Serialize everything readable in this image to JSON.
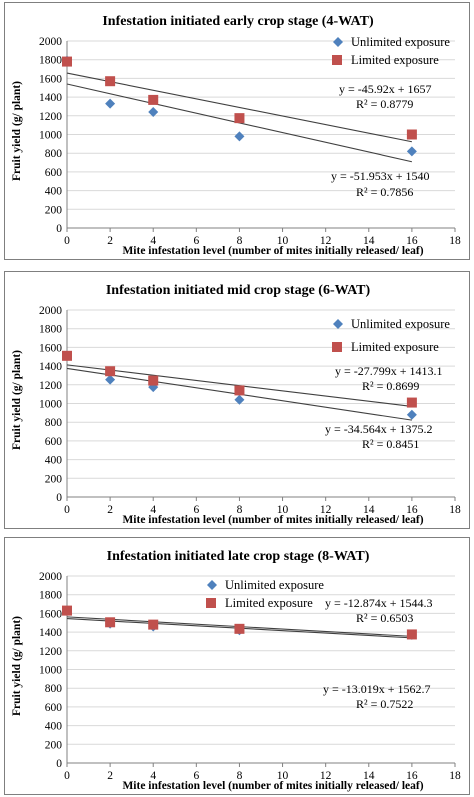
{
  "colors": {
    "unlimited": "#4f81bd",
    "limited": "#c0504d",
    "trendline": "#404040",
    "axis": "#808080"
  },
  "chart_data": [
    {
      "type": "scatter",
      "title": "Infestation initiated early crop stage (4-WAT)",
      "xlabel": "Mite infestation level (number of mites initially released/ leaf)",
      "ylabel": "Fruit yield (g/ plant)",
      "xlim": [
        0,
        18
      ],
      "ylim": [
        0,
        2000
      ],
      "xticks": [
        "0",
        "2",
        "4",
        "6",
        "8",
        "10",
        "12",
        "14",
        "16",
        "18"
      ],
      "yticks": [
        "0",
        "200",
        "400",
        "600",
        "800",
        "1000",
        "1200",
        "1400",
        "1600",
        "1800",
        "2000"
      ],
      "legend_position": "top-right",
      "series": [
        {
          "name": "Unlimited exposure",
          "marker": "diamond",
          "x": [
            0,
            2,
            4,
            8,
            16
          ],
          "y": [
            1790,
            1330,
            1240,
            980,
            820
          ],
          "trendline": {
            "slope": -51.953,
            "intercept": 1540,
            "equation": "y = -51.953x + 1540",
            "r2": "R² = 0.7856"
          }
        },
        {
          "name": "Limited exposure",
          "marker": "square",
          "x": [
            0,
            2,
            4,
            8,
            16
          ],
          "y": [
            1780,
            1570,
            1370,
            1175,
            1000
          ],
          "trendline": {
            "slope": -45.92,
            "intercept": 1657,
            "equation": "y = -45.92x + 1657",
            "r2": "R² = 0.8779"
          }
        }
      ]
    },
    {
      "type": "scatter",
      "title": "Infestation initiated mid crop stage (6-WAT)",
      "xlabel": "Mite infestation level (number of mites initially released/ leaf)",
      "ylabel": "Fruit yield (g/ plant)",
      "xlim": [
        0,
        18
      ],
      "ylim": [
        0,
        2000
      ],
      "xticks": [
        "0",
        "2",
        "4",
        "6",
        "8",
        "10",
        "12",
        "14",
        "16",
        "18"
      ],
      "yticks": [
        "0",
        "200",
        "400",
        "600",
        "800",
        "1000",
        "1200",
        "1400",
        "1600",
        "1800",
        "2000"
      ],
      "legend_position": "top-right",
      "series": [
        {
          "name": "Unlimited exposure",
          "marker": "diamond",
          "x": [
            0,
            2,
            4,
            8,
            16
          ],
          "y": [
            1510,
            1255,
            1175,
            1040,
            880
          ],
          "trendline": {
            "slope": -34.564,
            "intercept": 1375.2,
            "equation": "y = -34.564x + 1375.2",
            "r2": "R² = 0.8451"
          }
        },
        {
          "name": "Limited exposure",
          "marker": "square",
          "x": [
            0,
            2,
            4,
            8,
            16
          ],
          "y": [
            1510,
            1345,
            1245,
            1140,
            1010
          ],
          "trendline": {
            "slope": -27.799,
            "intercept": 1413.1,
            "equation": "y = -27.799x + 1413.1",
            "r2": "R² = 0.8699"
          }
        }
      ]
    },
    {
      "type": "scatter",
      "title": "Infestation initiated late crop stage (8-WAT)",
      "xlabel": "Mite infestation level (number of mites initially released/ leaf)",
      "ylabel": "Fruit yield (g/ plant)",
      "xlim": [
        0,
        18
      ],
      "ylim": [
        0,
        2000
      ],
      "xticks": [
        "0",
        "2",
        "4",
        "6",
        "8",
        "10",
        "12",
        "14",
        "16",
        "18"
      ],
      "yticks": [
        "0",
        "200",
        "400",
        "600",
        "800",
        "1000",
        "1200",
        "1400",
        "1600",
        "1800",
        "2000"
      ],
      "legend_position": "top-left",
      "series": [
        {
          "name": "Unlimited exposure",
          "marker": "diamond",
          "x": [
            0,
            2,
            4,
            8,
            16
          ],
          "y": [
            1630,
            1490,
            1460,
            1420,
            1370
          ],
          "trendline": {
            "slope": -13.019,
            "intercept": 1562.7,
            "equation": "y = -13.019x + 1562.7",
            "r2": "R² = 0.7522"
          }
        },
        {
          "name": "Limited exposure",
          "marker": "square",
          "x": [
            0,
            2,
            4,
            8,
            16
          ],
          "y": [
            1630,
            1505,
            1480,
            1435,
            1375
          ],
          "trendline": {
            "slope": -12.874,
            "intercept": 1544.3,
            "equation": "y = -12.874x + 1544.3",
            "r2": "R² = 0.6503"
          }
        }
      ]
    }
  ]
}
